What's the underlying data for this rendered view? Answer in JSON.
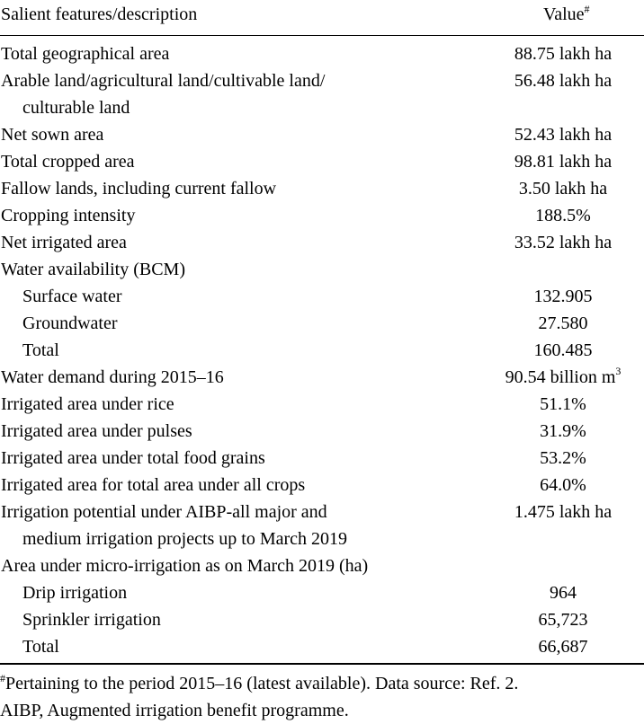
{
  "table": {
    "header": {
      "feature": "Salient features/description",
      "value": "Value",
      "value_mark": "#"
    },
    "rows": [
      {
        "label": "Total geographical area",
        "label2": "",
        "value": "88.75 lakh ha",
        "indent": false
      },
      {
        "label": "Arable land/agricultural land/cultivable land/",
        "label2": "culturable land",
        "value": "56.48 lakh ha",
        "indent": false
      },
      {
        "label": "Net sown area",
        "label2": "",
        "value": "52.43 lakh ha",
        "indent": false
      },
      {
        "label": "Total cropped area",
        "label2": "",
        "value": "98.81 lakh ha",
        "indent": false
      },
      {
        "label": "Fallow lands, including current fallow",
        "label2": "",
        "value": "3.50 lakh ha",
        "indent": false
      },
      {
        "label": "Cropping intensity",
        "label2": "",
        "value": "188.5%",
        "indent": false
      },
      {
        "label": "Net irrigated area",
        "label2": "",
        "value": "33.52 lakh ha",
        "indent": false
      },
      {
        "label": "Water availability (BCM)",
        "label2": "",
        "value": "",
        "indent": false
      },
      {
        "label": "Surface water",
        "label2": "",
        "value": "132.905",
        "indent": true
      },
      {
        "label": "Groundwater",
        "label2": "",
        "value": "27.580",
        "indent": true
      },
      {
        "label": "Total",
        "label2": "",
        "value": "160.485",
        "indent": true
      },
      {
        "label": "Water demand during 2015–16",
        "label2": "",
        "value": "90.54 billion m",
        "value_sup": "3",
        "indent": false
      },
      {
        "label": "Irrigated area under rice",
        "label2": "",
        "value": "51.1%",
        "indent": false
      },
      {
        "label": "Irrigated area under pulses",
        "label2": "",
        "value": "31.9%",
        "indent": false
      },
      {
        "label": "Irrigated area under total food grains",
        "label2": "",
        "value": "53.2%",
        "indent": false
      },
      {
        "label": "Irrigated area for total area under all crops",
        "label2": "",
        "value": "64.0%",
        "indent": false
      },
      {
        "label": "Irrigation potential under AIBP-all major and",
        "label2": "medium irrigation projects up to March 2019",
        "value": "1.475 lakh ha",
        "indent": false
      },
      {
        "label": "Area under micro-irrigation as on March 2019 (ha)",
        "label2": "",
        "value": "",
        "indent": false
      },
      {
        "label": "Drip irrigation",
        "label2": "",
        "value": "964",
        "indent": true
      },
      {
        "label": "Sprinkler irrigation",
        "label2": "",
        "value": "65,723",
        "indent": true
      },
      {
        "label": "Total",
        "label2": "",
        "value": "66,687",
        "indent": true
      }
    ]
  },
  "footnotes": {
    "mark": "#",
    "line1": "Pertaining to the period 2015–16 (latest available). Data source: Ref. 2.",
    "line2": "AIBP, Augmented irrigation benefit programme."
  }
}
